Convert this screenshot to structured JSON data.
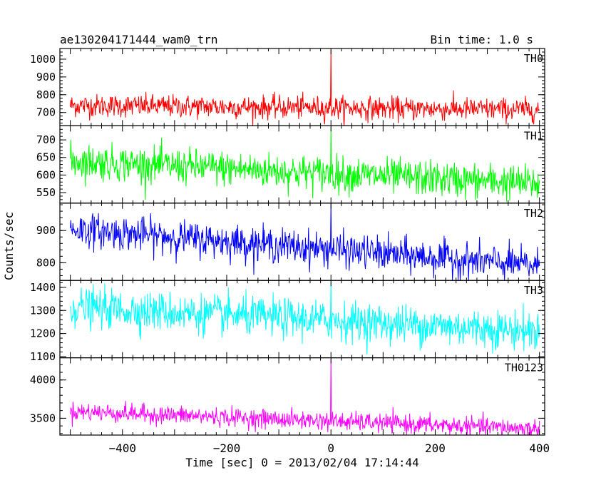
{
  "chart_data": {
    "type": "line",
    "title": "ae130204171444_wam0_trn",
    "bin_time_label": "Bin time: 1.0 s",
    "xlabel": "Time [sec] 0 = 2013/02/04 17:14:44",
    "ylabel": "Counts/sec",
    "xlim": [
      -520,
      410
    ],
    "x_ticks": [
      -400,
      -200,
      0,
      200,
      400
    ],
    "x_tick_labels": [
      "−400",
      "−200",
      "0",
      "200",
      "400"
    ],
    "x_data_range": [
      -500,
      400
    ],
    "panels": [
      {
        "name": "TH0",
        "color": "#ff0000",
        "ylim": [
          625,
          1060
        ],
        "y_ticks": [
          700,
          800,
          900,
          1000
        ],
        "y_tick_labels": [
          "700",
          "800",
          "900",
          "1000"
        ],
        "trend_start": 740,
        "trend_end": 715,
        "noise_sd": 32,
        "spike": {
          "x": 0,
          "y": 1060
        }
      },
      {
        "name": "TH1",
        "color": "#00ff00",
        "ylim": [
          520,
          740
        ],
        "y_ticks": [
          550,
          600,
          650,
          700
        ],
        "y_tick_labels": [
          "550",
          "600",
          "650",
          "700"
        ],
        "trend_start": 640,
        "trend_end": 575,
        "noise_sd": 25,
        "spike": {
          "x": 0,
          "y": 740
        }
      },
      {
        "name": "TH2",
        "color": "#0000ff",
        "ylim": [
          745,
          985
        ],
        "y_ticks": [
          800,
          900
        ],
        "y_tick_labels": [
          "800",
          "900"
        ],
        "trend_start": 905,
        "trend_end": 790,
        "noise_sd": 26,
        "spike": {
          "x": 0,
          "y": 985
        }
      },
      {
        "name": "TH3",
        "color": "#00ffff",
        "ylim": [
          1095,
          1430
        ],
        "y_ticks": [
          1100,
          1200,
          1300,
          1400
        ],
        "y_tick_labels": [
          "1100",
          "1200",
          "1300",
          "1400"
        ],
        "trend_start": 1315,
        "trend_end": 1210,
        "noise_sd": 42,
        "spike": {
          "x": 0,
          "y": 1430
        }
      },
      {
        "name": "TH0123",
        "color": "#ff00ff",
        "ylim": [
          3280,
          4290
        ],
        "y_ticks": [
          3500,
          4000
        ],
        "y_tick_labels": [
          "3500",
          "4000"
        ],
        "trend_start": 3590,
        "trend_end": 3360,
        "noise_sd": 60,
        "spike": {
          "x": 0,
          "y": 4290
        }
      }
    ],
    "grid": false,
    "legend": "none"
  }
}
